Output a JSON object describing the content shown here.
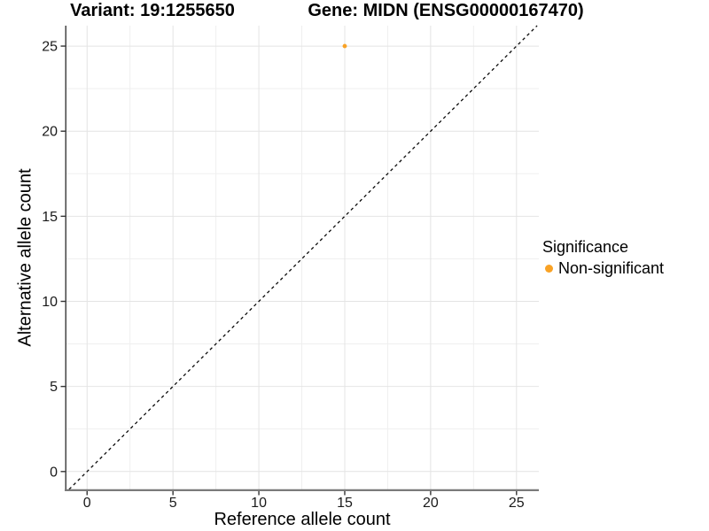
{
  "titles": {
    "left": "Variant: 19:1255650",
    "right": "Gene: MIDN (ENSG00000167470)"
  },
  "chart_data": {
    "type": "scatter",
    "title": "Variant: 19:1255650 / Gene: MIDN (ENSG00000167470)",
    "xlabel": "Reference allele count",
    "ylabel": "Alternative allele count",
    "xlim": [
      -1.2,
      26.3
    ],
    "ylim": [
      -1.05,
      26.2
    ],
    "x_ticks": [
      0,
      5,
      10,
      15,
      20,
      25
    ],
    "y_ticks": [
      0,
      5,
      10,
      15,
      20,
      25
    ],
    "x_minor_ticks": [
      2.5,
      7.5,
      12.5,
      17.5,
      22.5
    ],
    "y_minor_ticks": [
      2.5,
      7.5,
      12.5,
      17.5,
      22.5
    ],
    "grid": true,
    "legend": {
      "position": "right",
      "title": "Significance",
      "items": [
        {
          "label": "Non-significant",
          "color": "#F9A225"
        }
      ]
    },
    "series": [
      {
        "name": "Non-significant",
        "color": "#F9A225",
        "points": [
          [
            15,
            25
          ]
        ]
      }
    ],
    "reference_line": {
      "kind": "identity y = x",
      "style": "dashed",
      "color": "#0a0a0a"
    }
  },
  "colors": {
    "background": "#FFFFFF",
    "grid_major": "#E4E4E4",
    "grid_minor": "#EFEFEF",
    "axis_line_x": "#7A7A7A",
    "axis_line_y": "#454545",
    "tick_mark": "#333333",
    "tick_label": "#1A1A1A",
    "point_orange": "#F9A225"
  }
}
